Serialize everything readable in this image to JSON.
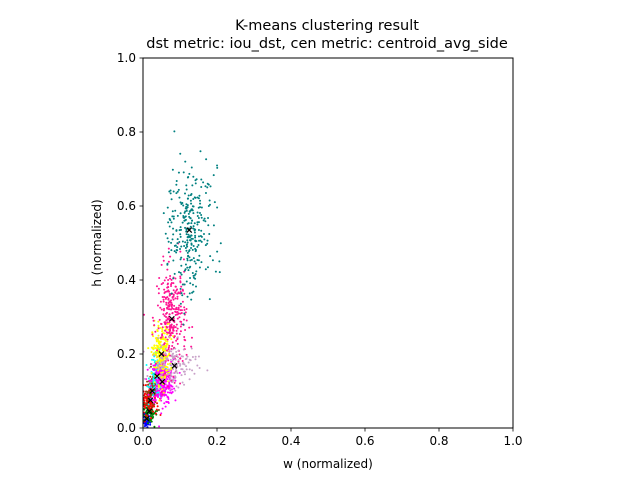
{
  "chart_data": {
    "type": "scatter",
    "title": "K-means clustering result",
    "subtitle": "dst metric: iou_dst, cen metric: centroid_avg_side",
    "xlabel": "w (normalized)",
    "ylabel": "h (normalized)",
    "xlim": [
      0,
      1
    ],
    "ylim": [
      0,
      1
    ],
    "xticks": [
      "0.0",
      "0.2",
      "0.4",
      "0.6",
      "0.8",
      "1.0"
    ],
    "yticks": [
      "0.0",
      "0.2",
      "0.4",
      "0.6",
      "0.8",
      "1.0"
    ],
    "grid": false,
    "legend": "none",
    "clusters": [
      {
        "color": "#0000ff",
        "centroid": [
          0.01,
          0.025
        ],
        "spread": [
          0.006,
          0.01
        ],
        "count": 60
      },
      {
        "color": "#008000",
        "centroid": [
          0.017,
          0.045
        ],
        "spread": [
          0.008,
          0.018
        ],
        "count": 90
      },
      {
        "color": "#ff0000",
        "centroid": [
          0.02,
          0.075
        ],
        "spread": [
          0.01,
          0.02
        ],
        "count": 120
      },
      {
        "color": "#8b4513",
        "centroid": [
          0.025,
          0.1
        ],
        "spread": [
          0.008,
          0.02
        ],
        "count": 100
      },
      {
        "color": "#00ffff",
        "centroid": [
          0.038,
          0.14
        ],
        "spread": [
          0.01,
          0.03
        ],
        "count": 130
      },
      {
        "color": "#ff00ff",
        "centroid": [
          0.052,
          0.125
        ],
        "spread": [
          0.015,
          0.03
        ],
        "count": 280
      },
      {
        "color": "#ffff00",
        "centroid": [
          0.05,
          0.2
        ],
        "spread": [
          0.012,
          0.04
        ],
        "count": 230
      },
      {
        "color": "#ff1493",
        "centroid": [
          0.078,
          0.295
        ],
        "spread": [
          0.02,
          0.07
        ],
        "count": 300
      },
      {
        "color": "#c8a2c8",
        "centroid": [
          0.085,
          0.168
        ],
        "spread": [
          0.03,
          0.03
        ],
        "count": 140
      },
      {
        "color": "#008080",
        "centroid": [
          0.125,
          0.535
        ],
        "spread": [
          0.03,
          0.085
        ],
        "count": 300
      }
    ]
  }
}
